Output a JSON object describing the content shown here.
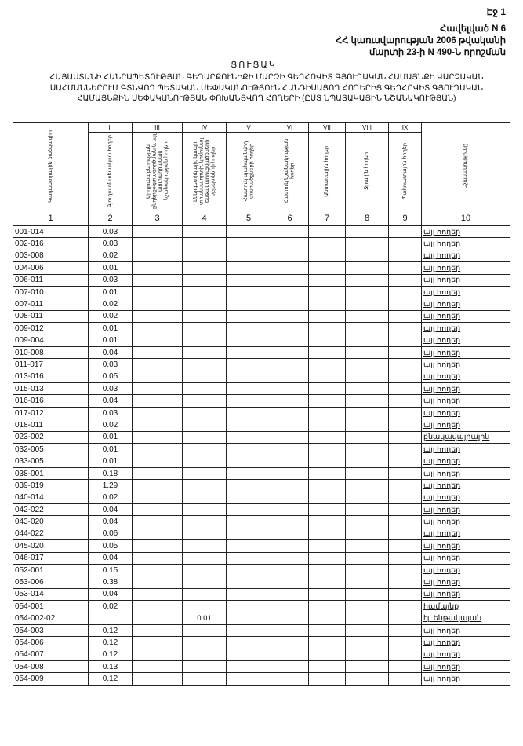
{
  "page_number": "Էջ 1",
  "annex": {
    "line1": "Հավելված N 6",
    "line2": "ՀՀ կառավարության 2006 թվականի",
    "line3": "մարտի 23-ի N 490-Ն որոշման"
  },
  "list_title": "ՑՈՒՑԱԿ",
  "main_title": "ՀԱՅԱՍՏԱՆԻ ՀԱՆՐԱՊԵՏՈՒԹՅԱՆ ԳԵՂԱՐՔՈՒՆԻՔԻ ՄԱՐԶԻ ԳԵՂՀՈՎԻՏ ԳՅՈՒՂԱԿԱՆ ՀԱՄԱՅՆՔԻ ՎԱՐՉԱԿԱՆ ՍԱՀՄԱՆՆԵՐՈՒՄ ԳՏՆՎՈՂ ՊԵՏԱԿԱՆ ՍԵՓԱԿԱՆՈՒԹՅՈՒՆ ՀԱՆԴԻՍԱՑՈՂ ՀՈՂԵՐԻՑ ԳԵՂՀՈՎԻՏ ԳՅՈՒՂԱԿԱՆ ՀԱՄԱՅՆՔԻՆ ՍԵՓԱԿԱՆՈՒԹՅԱՆ ՓՈԽԱՆՑՎՈՂ ՀՈՂԵՐԻ (ԸՍՏ ՆՊԱՏԱԿԱՅԻՆ ՆՇԱՆԱԿՈՒԹՅԱՆ)",
  "table": {
    "roman": [
      "",
      "II",
      "III",
      "IV",
      "V",
      "VI",
      "VII",
      "VIII",
      "IX",
      ""
    ],
    "headers": [
      "Կադաստրային ծածկագիր",
      "Գյուղատնտեսական հողեր",
      "Արդյունաբերության, ընդերքօգտագործման և այլ արտադրական նշանակության հողեր",
      "Էներգետիկայի, կապի, տրանսպորտի, կոմունալ ենթակառուցվածքների օբյեկտների հողեր",
      "Հատուկ պահպանվող տարածքների հողեր",
      "Հատուկ նշանակության հողեր",
      "Անտառային հողեր",
      "Ջրային հողեր",
      "Պահուստային հողեր",
      "Նշանակությունը"
    ],
    "numbers": [
      "1",
      "2",
      "3",
      "4",
      "5",
      "6",
      "7",
      "8",
      "9",
      "10"
    ],
    "rows": [
      {
        "code": "001-014",
        "agri": "0.03",
        "energy": "",
        "purpose": "այլ հողեր"
      },
      {
        "code": "002-016",
        "agri": "0.03",
        "energy": "",
        "purpose": "այլ հողեր"
      },
      {
        "code": "003-008",
        "agri": "0.02",
        "energy": "",
        "purpose": "այլ հողեր"
      },
      {
        "code": "004-006",
        "agri": "0.01",
        "energy": "",
        "purpose": "այլ հողեր"
      },
      {
        "code": "006-011",
        "agri": "0.03",
        "energy": "",
        "purpose": "այլ հողեր"
      },
      {
        "code": "007-010",
        "agri": "0.01",
        "energy": "",
        "purpose": "այլ հողեր"
      },
      {
        "code": "007-011",
        "agri": "0.02",
        "energy": "",
        "purpose": "այլ հողեր"
      },
      {
        "code": "008-011",
        "agri": "0.02",
        "energy": "",
        "purpose": "այլ հողեր"
      },
      {
        "code": "009-012",
        "agri": "0.01",
        "energy": "",
        "purpose": "այլ հողեր"
      },
      {
        "code": "009-004",
        "agri": "0.01",
        "energy": "",
        "purpose": "այլ հողեր"
      },
      {
        "code": "010-008",
        "agri": "0.04",
        "energy": "",
        "purpose": "այլ հողեր"
      },
      {
        "code": "011-017",
        "agri": "0.03",
        "energy": "",
        "purpose": "այլ հողեր"
      },
      {
        "code": "013-016",
        "agri": "0.05",
        "energy": "",
        "purpose": "այլ հողեր"
      },
      {
        "code": "015-013",
        "agri": "0.03",
        "energy": "",
        "purpose": "այլ հողեր"
      },
      {
        "code": "016-016",
        "agri": "0.04",
        "energy": "",
        "purpose": "այլ հողեր"
      },
      {
        "code": "017-012",
        "agri": "0.03",
        "energy": "",
        "purpose": "այլ հողեր"
      },
      {
        "code": "018-011",
        "agri": "0.02",
        "energy": "",
        "purpose": "այլ հողեր"
      },
      {
        "code": "023-002",
        "agri": "0.01",
        "energy": "",
        "purpose": "բնակավայրային"
      },
      {
        "code": "032-005",
        "agri": "0.01",
        "energy": "",
        "purpose": "այլ հողեր"
      },
      {
        "code": "033-005",
        "agri": "0.01",
        "energy": "",
        "purpose": "այլ հողեր"
      },
      {
        "code": "038-001",
        "agri": "0.18",
        "energy": "",
        "purpose": "այլ հողեր"
      },
      {
        "code": "039-019",
        "agri": "1.29",
        "energy": "",
        "purpose": "այլ հողեր"
      },
      {
        "code": "040-014",
        "agri": "0.02",
        "energy": "",
        "purpose": "այլ հողեր"
      },
      {
        "code": "042-022",
        "agri": "0.04",
        "energy": "",
        "purpose": "այլ հողեր"
      },
      {
        "code": "043-020",
        "agri": "0.04",
        "energy": "",
        "purpose": "այլ հողեր"
      },
      {
        "code": "044-022",
        "agri": "0.06",
        "energy": "",
        "purpose": "այլ հողեր"
      },
      {
        "code": "045-020",
        "agri": "0.05",
        "energy": "",
        "purpose": "այլ հողեր"
      },
      {
        "code": "046-017",
        "agri": "0.04",
        "energy": "",
        "purpose": "այլ հողեր"
      },
      {
        "code": "052-001",
        "agri": "0.15",
        "energy": "",
        "purpose": "այլ հողեր"
      },
      {
        "code": "053-006",
        "agri": "0.38",
        "energy": "",
        "purpose": "այլ հողեր"
      },
      {
        "code": "053-014",
        "agri": "0.04",
        "energy": "",
        "purpose": "այլ հողեր"
      },
      {
        "code": "054-001",
        "agri": "0.02",
        "energy": "",
        "purpose": "համայնք"
      },
      {
        "code": "054-002-02",
        "agri": "",
        "energy": "0.01",
        "purpose": "էլ. ենթակայան"
      },
      {
        "code": "054-003",
        "agri": "0.12",
        "energy": "",
        "purpose": "այլ հողեր"
      },
      {
        "code": "054-006",
        "agri": "0.12",
        "energy": "",
        "purpose": "այլ հողեր"
      },
      {
        "code": "054-007",
        "agri": "0.12",
        "energy": "",
        "purpose": "այլ հողեր"
      },
      {
        "code": "054-008",
        "agri": "0.13",
        "energy": "",
        "purpose": "այլ հողեր"
      },
      {
        "code": "054-009",
        "agri": "0.12",
        "energy": "",
        "purpose": "այլ հողեր"
      }
    ]
  }
}
